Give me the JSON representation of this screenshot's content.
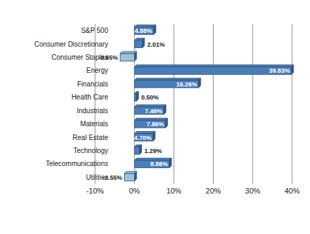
{
  "chart_data": {
    "type": "bar",
    "orientation": "horizontal",
    "categories": [
      "S&P 500",
      "Consumer Discretionary",
      "Consumer Staples",
      "Energy",
      "Financials",
      "Health Care",
      "Industrials",
      "Materials",
      "Real Estate",
      "Technology",
      "Telecommunications",
      "Utilities"
    ],
    "values": [
      4.88,
      2.01,
      -3.65,
      39.83,
      16.26,
      0.5,
      7.46,
      7.86,
      4.7,
      1.29,
      8.86,
      -2.55
    ],
    "value_labels": [
      "4.88%",
      "2.01%",
      "-3.65%",
      "39.83%",
      "16.26%",
      "0.50%",
      "7.46%",
      "7.86%",
      "4.70%",
      "1.29%",
      "8.86%",
      "-2.55%"
    ],
    "colors": [
      "#4a7ebb",
      "#4a7ebb",
      "#9cc3d9",
      "#4a7ebb",
      "#4a7ebb",
      "#4a7ebb",
      "#4a7ebb",
      "#4a7ebb",
      "#4a7ebb",
      "#4a7ebb",
      "#4a7ebb",
      "#9cc3d9"
    ],
    "xlim": [
      -10,
      40
    ],
    "xticks": [
      {
        "value": -10,
        "label": "-10%"
      },
      {
        "value": 0,
        "label": "0%"
      },
      {
        "value": 10,
        "label": "10%"
      },
      {
        "value": 20,
        "label": "20%"
      },
      {
        "value": 30,
        "label": "30%"
      },
      {
        "value": 40,
        "label": "40%"
      }
    ],
    "grid": true,
    "data_labels": true
  }
}
